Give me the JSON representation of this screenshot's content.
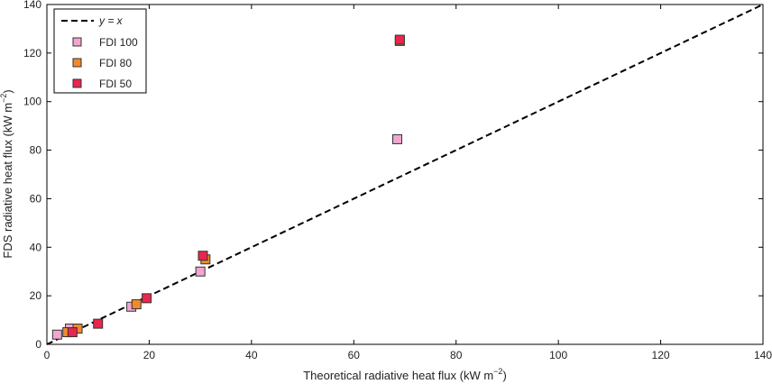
{
  "chart_data": {
    "type": "scatter",
    "xlabel": "Theoretical radiative heat flux (kW m",
    "xlabel_sup": "−2",
    "xlabel_close": ")",
    "ylabel": "FDS radiative heat flux (kW m",
    "ylabel_sup": "−2",
    "ylabel_close": ")",
    "xlim": [
      0,
      140
    ],
    "ylim": [
      0,
      140
    ],
    "xticks": [
      0,
      20,
      40,
      60,
      80,
      100,
      120,
      140
    ],
    "yticks": [
      0,
      20,
      40,
      60,
      80,
      100,
      120,
      140
    ],
    "grid": false,
    "legend_position": "top-left",
    "reference_line": {
      "label": "y = x",
      "x": [
        0,
        140
      ],
      "y": [
        0,
        140
      ],
      "style": "dashed",
      "color": "#000000"
    },
    "series": [
      {
        "name": "FDI 100",
        "color": "#f0a6cf",
        "points": [
          [
            2,
            4
          ],
          [
            4.5,
            6.5
          ],
          [
            16.5,
            15.5
          ],
          [
            30,
            30
          ],
          [
            68.5,
            84.5
          ]
        ]
      },
      {
        "name": "FDI 80",
        "color": "#f08a2c",
        "points": [
          [
            4,
            5
          ],
          [
            6,
            6.5
          ],
          [
            17.5,
            16.5
          ],
          [
            31,
            35
          ],
          [
            69,
            125
          ]
        ]
      },
      {
        "name": "FDI 50",
        "color": "#e8264e",
        "points": [
          [
            5,
            5
          ],
          [
            10,
            8.5
          ],
          [
            19.5,
            19
          ],
          [
            30.5,
            36.5
          ],
          [
            69,
            125.5
          ]
        ]
      }
    ]
  }
}
